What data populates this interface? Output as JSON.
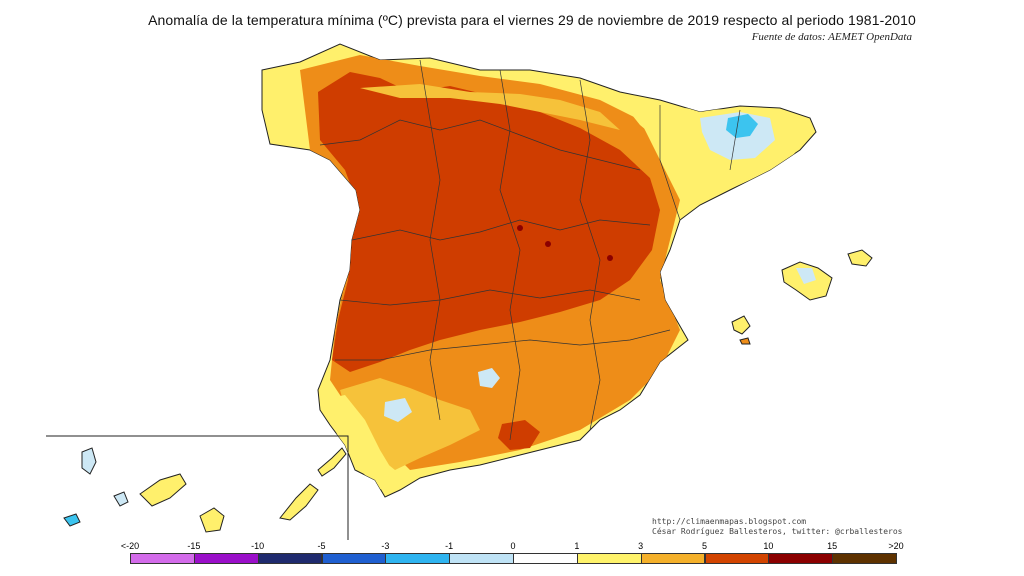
{
  "title": "Anomalía de la temperatura mínima (ºC) prevista para el viernes 29 de noviembre de 2019 respecto al periodo 1981-2010",
  "source": "Fuente de datos: AEMET OpenData",
  "credits": {
    "line1": "http://climaenmapas.blogspot.com",
    "line2": "César Rodríguez Ballesteros, twitter: @crballesteros"
  },
  "legend": {
    "tick_labels": [
      "<-20",
      "-15",
      "-10",
      "-5",
      "-3",
      "-1",
      "0",
      "1",
      "3",
      "5",
      "10",
      "15",
      ">20"
    ],
    "colors": [
      "#d36bea",
      "#9a0fc9",
      "#1f2a6e",
      "#1f5fd0",
      "#2fb4f0",
      "#bfe3f6",
      "#ffffff",
      "#fff36b",
      "#f4b02a",
      "#d24400",
      "#8b0000",
      "#5e3200"
    ]
  },
  "palette": {
    "hot": "#cf3d00",
    "warm": "#ee8d18",
    "mild": "#f6c23a",
    "pale": "#fff06c",
    "cool": "#cde8f5",
    "cold": "#3cc4ef",
    "extreme": "#8b0000"
  }
}
